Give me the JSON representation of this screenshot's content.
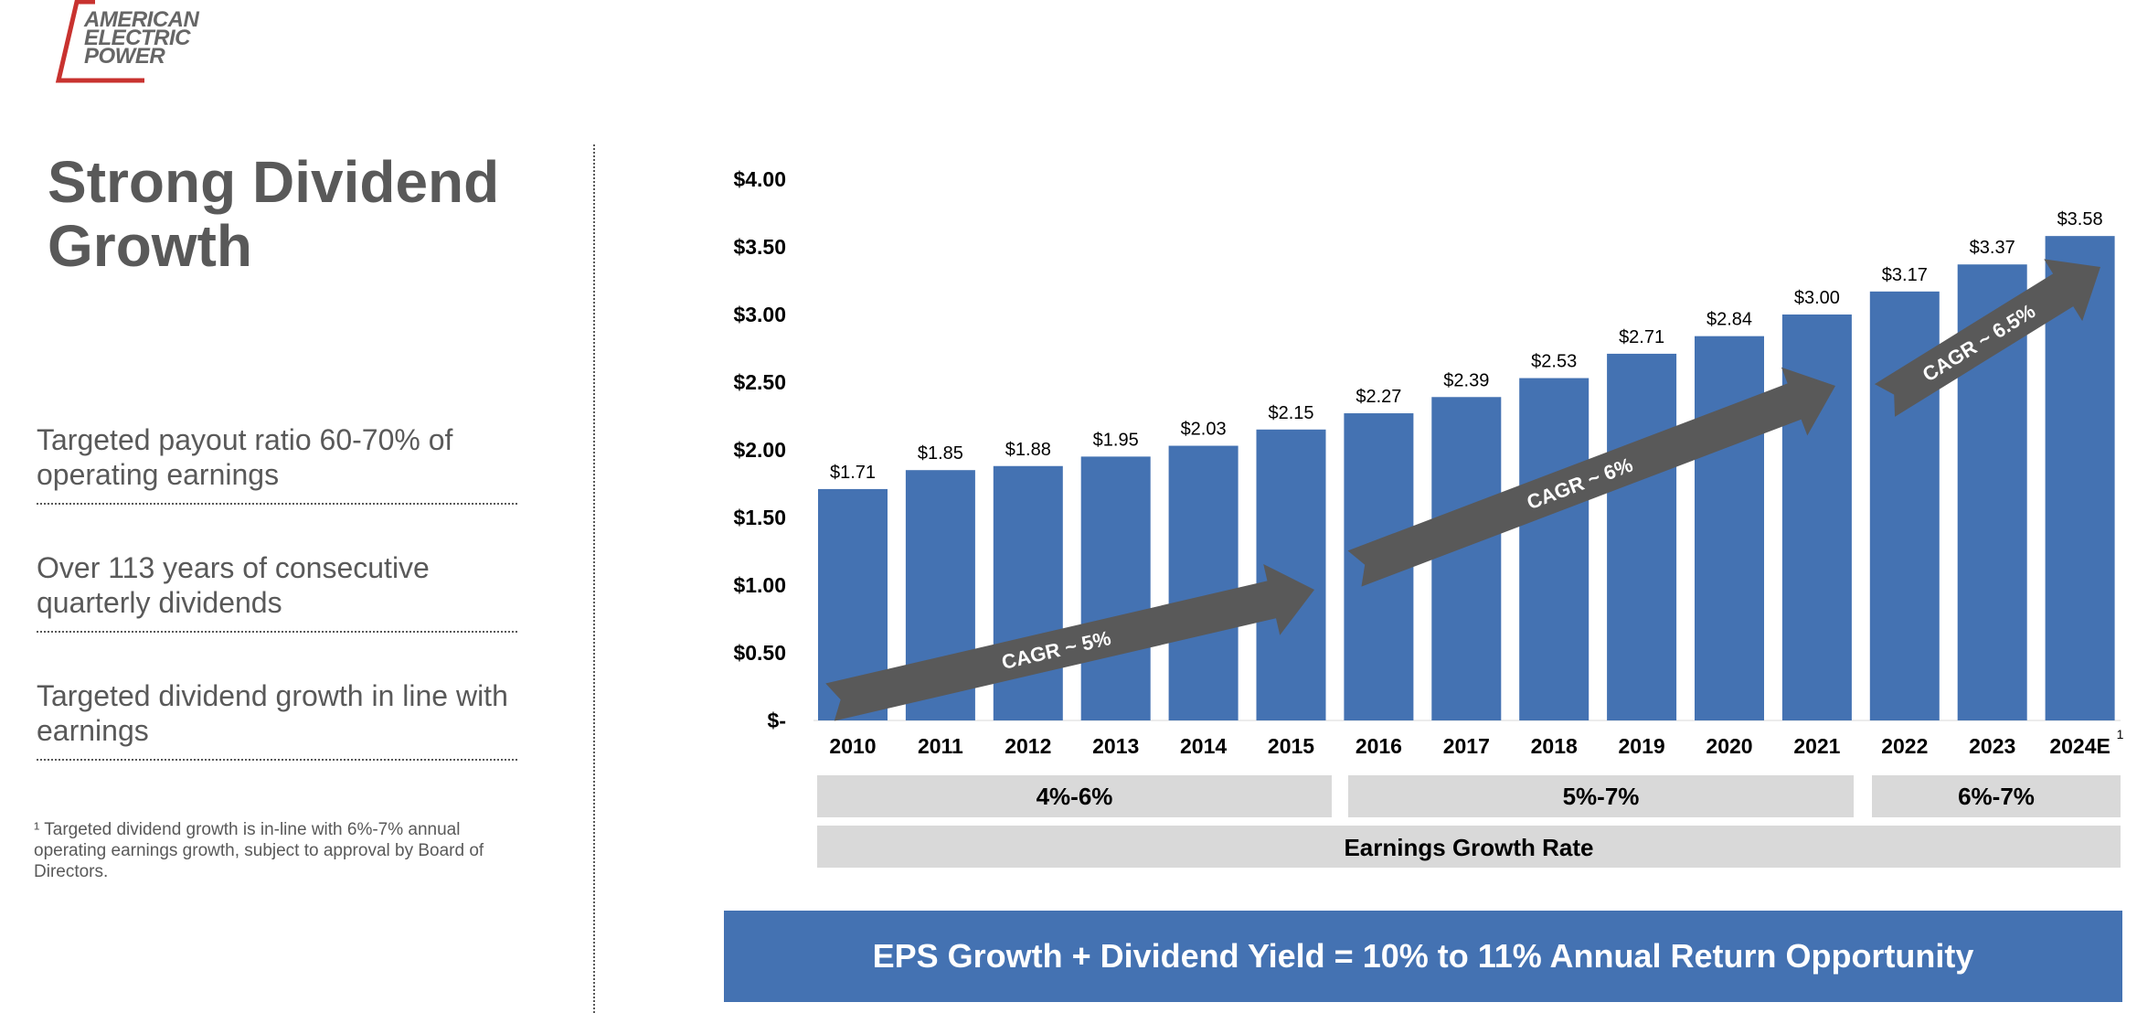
{
  "logo": {
    "lines": [
      "AMERICAN",
      "ELECTRIC",
      "POWER"
    ]
  },
  "title": "Strong Dividend Growth",
  "bullets": [
    "Targeted payout ratio 60-70% of operating earnings",
    "Over 113 years of consecutive quarterly dividends",
    "Targeted dividend growth in line with earnings"
  ],
  "footnote": "¹ Targeted dividend growth is in-line with 6%-7% annual operating earnings growth, subject to approval by Board of Directors.",
  "banner": "EPS Growth + Dividend Yield = 10% to 11% Annual Return Opportunity",
  "colors": {
    "bar": "#4472b2",
    "arrow": "#595959",
    "band": "#d9d9d9",
    "text": "#595959"
  },
  "chart_data": {
    "type": "bar",
    "title": "",
    "xlabel": "",
    "ylabel": "",
    "categories": [
      "2010",
      "2011",
      "2012",
      "2013",
      "2014",
      "2015",
      "2016",
      "2017",
      "2018",
      "2019",
      "2020",
      "2021",
      "2022",
      "2023",
      "2024E"
    ],
    "values": [
      1.71,
      1.85,
      1.88,
      1.95,
      2.03,
      2.15,
      2.27,
      2.39,
      2.53,
      2.71,
      2.84,
      3.0,
      3.17,
      3.37,
      3.58
    ],
    "value_labels": [
      "$1.71",
      "$1.85",
      "$1.88",
      "$1.95",
      "$2.03",
      "$2.15",
      "$2.27",
      "$2.39",
      "$2.53",
      "$2.71",
      "$2.84",
      "$3.00",
      "$3.17",
      "$3.37",
      "$3.58"
    ],
    "ylim": [
      0,
      4
    ],
    "yticks": [
      0,
      0.5,
      1.0,
      1.5,
      2.0,
      2.5,
      3.0,
      3.5,
      4.0
    ],
    "ytick_labels": [
      "$-",
      "$0.50",
      "$1.00",
      "$1.50",
      "$2.00",
      "$2.50",
      "$3.00",
      "$3.50",
      "$4.00"
    ],
    "last_category_footnote": "1",
    "cagr_arrows": [
      {
        "label": "CAGR ~ 5%",
        "from_index": 0,
        "to_index": 5
      },
      {
        "label": "CAGR ~ 6%",
        "from_index": 6,
        "to_index": 11
      },
      {
        "label": "CAGR ~ 6.5%",
        "from_index": 12,
        "to_index": 14
      }
    ],
    "growth_bands": [
      {
        "label": "4%-6%",
        "from_index": 0,
        "to_index": 5
      },
      {
        "label": "5%-7%",
        "from_index": 6,
        "to_index": 11
      },
      {
        "label": "6%-7%",
        "from_index": 12,
        "to_index": 14
      }
    ],
    "growth_caption": "Earnings Growth Rate"
  }
}
